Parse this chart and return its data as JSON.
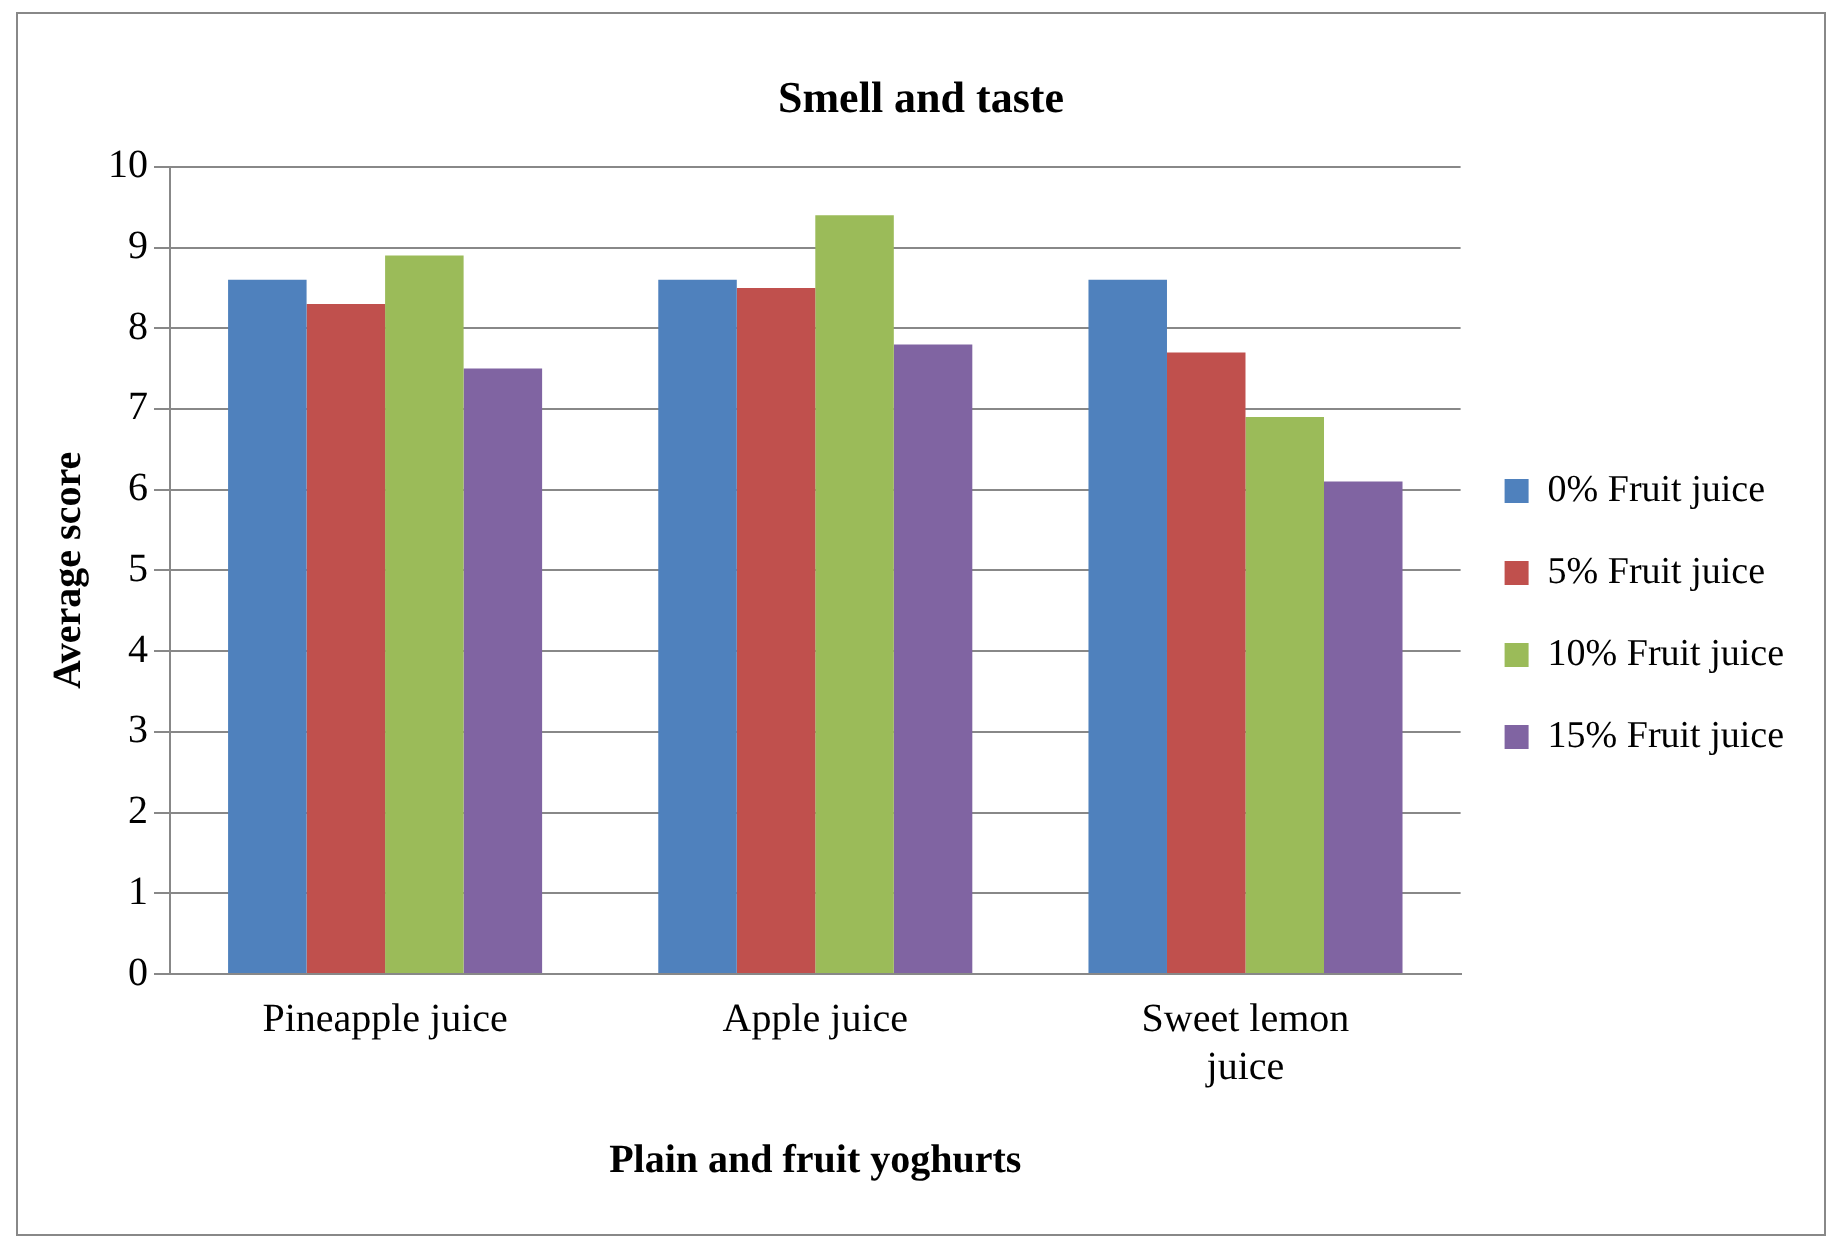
{
  "chart_data": {
    "type": "bar",
    "title": "Smell and taste",
    "xlabel": "Plain and fruit yoghurts",
    "ylabel": "Average score",
    "categories": [
      "Pineapple juice",
      "Apple juice",
      "Sweet lemon juice"
    ],
    "series": [
      {
        "name": "0% Fruit juice",
        "color": "#4f81bd",
        "values": [
          8.6,
          8.6,
          8.6
        ]
      },
      {
        "name": "5% Fruit juice",
        "color": "#c0504d",
        "values": [
          8.3,
          8.5,
          7.7
        ]
      },
      {
        "name": "10% Fruit juice",
        "color": "#9bbb59",
        "values": [
          8.9,
          9.4,
          6.9
        ]
      },
      {
        "name": "15% Fruit juice",
        "color": "#8064a2",
        "values": [
          7.5,
          7.8,
          6.1
        ]
      }
    ],
    "ylim": [
      0,
      10
    ],
    "yticks": [
      0,
      1,
      2,
      3,
      4,
      5,
      6,
      7,
      8,
      9,
      10
    ],
    "grid": "y",
    "legend": "right"
  }
}
